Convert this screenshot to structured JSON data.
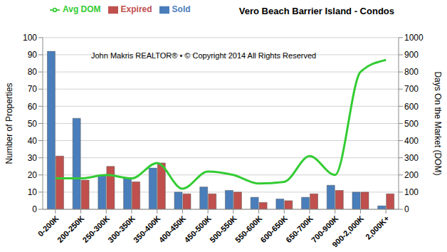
{
  "chart_data": {
    "type": "bar",
    "title": "Vero Beach Barrier Island - Condos",
    "annotation": "John Makris REALTOR®  •  © Copyright 2014 All Rights Reserved",
    "y_label": "Number of Properties",
    "y2_label": "Days On the Market (DOM)",
    "categories": [
      "0-200K",
      "200-250K",
      "250-300K",
      "300-350K",
      "350-400K",
      "400-450K",
      "450-500K",
      "500-550K",
      "550-600K",
      "600-650K",
      "650-700K",
      "700-900K",
      "900-2,000K",
      "2,000K+"
    ],
    "series": [
      {
        "name": "Sold",
        "type": "bar",
        "color": "#4a7ebb",
        "values": [
          92,
          53,
          20,
          18,
          24,
          10,
          13,
          11,
          7,
          6,
          7,
          14,
          10,
          2
        ]
      },
      {
        "name": "Expired",
        "type": "bar",
        "color": "#c0504d",
        "values": [
          31,
          17,
          25,
          16,
          27,
          9,
          9,
          10,
          4,
          5,
          9,
          11,
          10,
          9
        ]
      },
      {
        "name": "Avg DOM",
        "type": "line",
        "axis": "y2",
        "color": "#33cc33",
        "values": [
          180,
          180,
          200,
          180,
          270,
          120,
          220,
          200,
          150,
          160,
          310,
          200,
          800,
          870
        ]
      }
    ],
    "ylim": [
      0,
      100
    ],
    "yticks": [
      0,
      10,
      20,
      30,
      40,
      50,
      60,
      70,
      80,
      90,
      100
    ],
    "y2lim": [
      0,
      1000
    ],
    "y2ticks": [
      0,
      100,
      200,
      300,
      400,
      500,
      600,
      700,
      800,
      900,
      1000
    ],
    "grid": true,
    "legend": "top-left"
  }
}
